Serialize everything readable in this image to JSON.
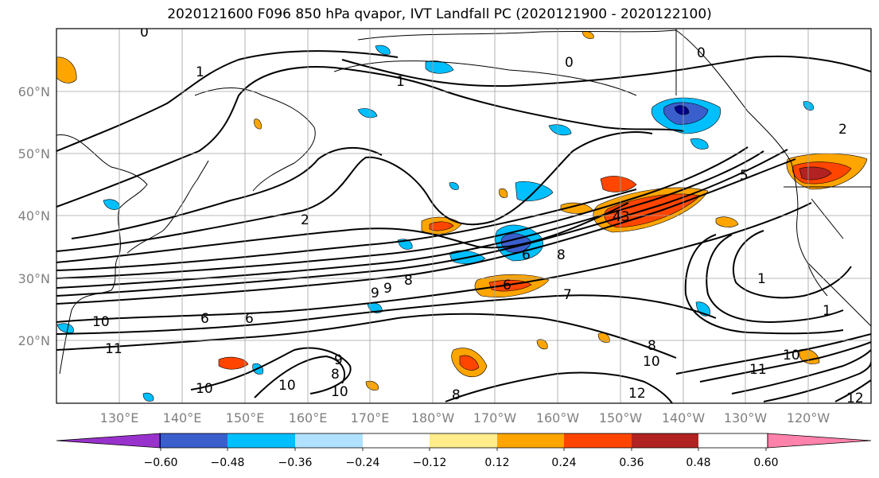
{
  "title": "2020121600 F096 850 hPa qvapor, IVT Landfall PC (2020121900 - 2020122100)",
  "latitude_labels": [
    "60°N",
    "50°N",
    "40°N",
    "30°N",
    "20°N"
  ],
  "longitude_labels": [
    "130°E",
    "140°E",
    "150°E",
    "160°E",
    "170°E",
    "180°W",
    "170°W",
    "160°W",
    "150°W",
    "140°W",
    "130°W",
    "120°W"
  ],
  "contour_labels": [
    "0",
    "0",
    "0",
    "1",
    "1",
    "2",
    "2",
    "5",
    "43",
    "6",
    "8",
    "8",
    "6",
    "9",
    "9",
    "6",
    "6",
    "10",
    "11",
    "9",
    "8",
    "10",
    "10",
    "8",
    "10",
    "1",
    "1",
    "7",
    "11",
    "10",
    "12",
    "12",
    "8",
    "10"
  ],
  "colorbar": {
    "ticks": [
      "−0.60",
      "−0.48",
      "−0.36",
      "−0.24",
      "−0.12",
      "0.12",
      "0.24",
      "0.36",
      "0.48",
      "0.60"
    ],
    "colors": [
      "#9932cc",
      "#00008b",
      "#3a5fcd",
      "#00bfff",
      "#b0e2ff",
      "#ffffff",
      "#ffec8b",
      "#ffa500",
      "#ff4500",
      "#b22222",
      "#ff82ab"
    ]
  },
  "colors": {
    "frame": "#000000",
    "gridline": "#a0a0a0",
    "coastline": "#000000",
    "axis_label": "#808080"
  }
}
